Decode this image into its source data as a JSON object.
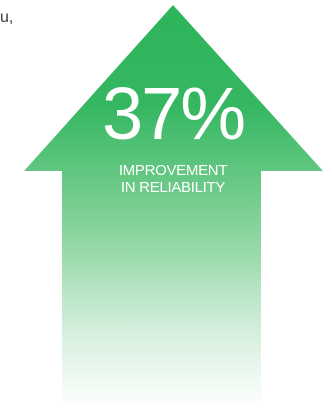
{
  "corner_text": "u,",
  "stat": {
    "value": "37%",
    "caption_line1": "IMPROVEMENT",
    "caption_line2": "IN RELIABILITY"
  },
  "colors": {
    "arrow_green": "#2db45a",
    "arrow_fade": "#ffffff",
    "text_white": "#ffffff"
  },
  "icon": "up-arrow-icon"
}
